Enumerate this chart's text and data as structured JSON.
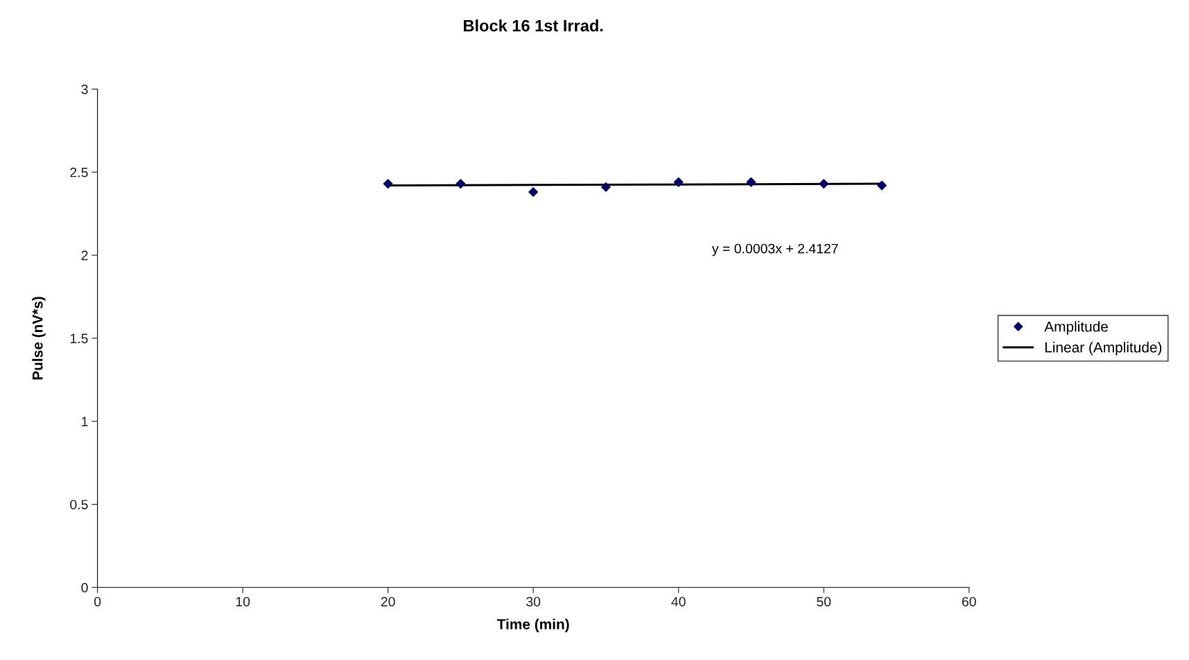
{
  "chart_data": {
    "type": "scatter",
    "title": "Block 16 1st Irrad.",
    "xlabel": "Time (min)",
    "ylabel": "Pulse (nV*s)",
    "annotations": [
      "y = 0.0003x + 2.4127"
    ],
    "series": [
      {
        "name": "Amplitude",
        "color": "#000066",
        "marker": "diamond",
        "x": [
          20,
          25,
          30,
          35,
          40,
          45,
          50,
          54
        ],
        "values": [
          2.43,
          2.43,
          2.38,
          2.41,
          2.44,
          2.44,
          2.43,
          2.42
        ]
      },
      {
        "name": "Linear (Amplitude)",
        "type": "line",
        "color": "#000000",
        "line_style": "solid",
        "x": [
          20,
          54
        ],
        "values": [
          2.42,
          2.43
        ]
      }
    ],
    "xlim": [
      0,
      60
    ],
    "xticks": [
      0,
      10,
      20,
      30,
      40,
      50,
      60
    ],
    "ylim": [
      0,
      3
    ],
    "yticks": [
      0,
      0.5,
      1,
      1.5,
      2,
      2.5,
      3
    ],
    "grid": false,
    "legend": "right"
  }
}
